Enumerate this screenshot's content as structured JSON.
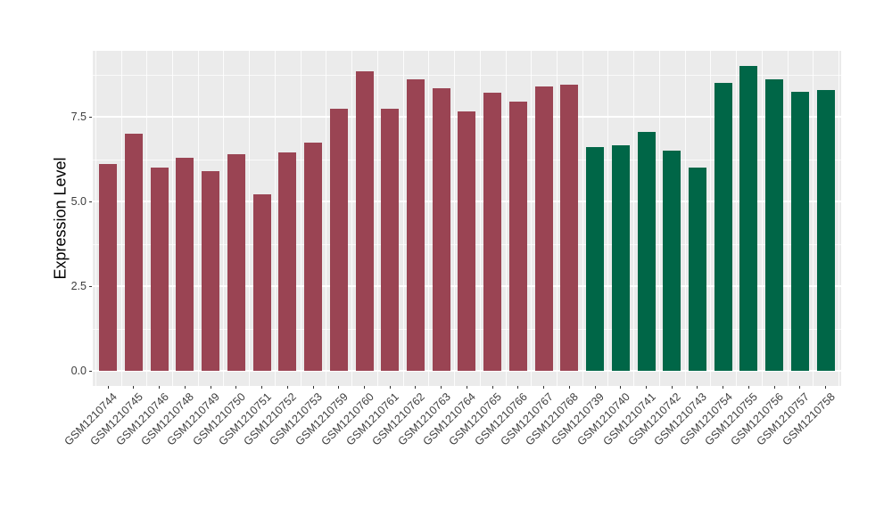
{
  "chart_data": {
    "type": "bar",
    "title": "",
    "xlabel": "",
    "ylabel": "Expression Level",
    "legend_position": "none",
    "grid": true,
    "panel_background": "#EBEBEB",
    "grid_color": "#FFFFFF",
    "ylim": [
      0,
      9.45
    ],
    "ytick_labels": [
      "0.0",
      "2.5",
      "5.0",
      "7.5"
    ],
    "ytick_values": [
      0,
      2.5,
      5.0,
      7.5
    ],
    "yminor_values": [
      1.25,
      3.75,
      6.25,
      8.75
    ],
    "categories": [
      "GSM1210744",
      "GSM1210745",
      "GSM1210746",
      "GSM1210748",
      "GSM1210749",
      "GSM1210750",
      "GSM1210751",
      "GSM1210752",
      "GSM1210753",
      "GSM1210759",
      "GSM1210760",
      "GSM1210761",
      "GSM1210762",
      "GSM1210763",
      "GSM1210764",
      "GSM1210765",
      "GSM1210766",
      "GSM1210767",
      "GSM1210768",
      "GSM1210739",
      "GSM1210740",
      "GSM1210741",
      "GSM1210742",
      "GSM1210743",
      "GSM1210754",
      "GSM1210755",
      "GSM1210756",
      "GSM1210757",
      "GSM1210758"
    ],
    "values": [
      6.1,
      7.0,
      6.0,
      6.3,
      5.9,
      6.4,
      5.2,
      6.45,
      6.75,
      7.75,
      8.85,
      7.75,
      8.6,
      8.35,
      7.65,
      8.2,
      7.95,
      8.4,
      8.45,
      6.6,
      6.65,
      7.05,
      6.5,
      6.0,
      8.5,
      9.0,
      8.6,
      8.25,
      8.3
    ],
    "bar_groups": [
      "a",
      "a",
      "a",
      "a",
      "a",
      "a",
      "a",
      "a",
      "a",
      "a",
      "a",
      "a",
      "a",
      "a",
      "a",
      "a",
      "a",
      "a",
      "a",
      "b",
      "b",
      "b",
      "b",
      "b",
      "b",
      "b",
      "b",
      "b",
      "b"
    ],
    "colors": {
      "a": "#9A4453",
      "b": "#006647"
    }
  }
}
